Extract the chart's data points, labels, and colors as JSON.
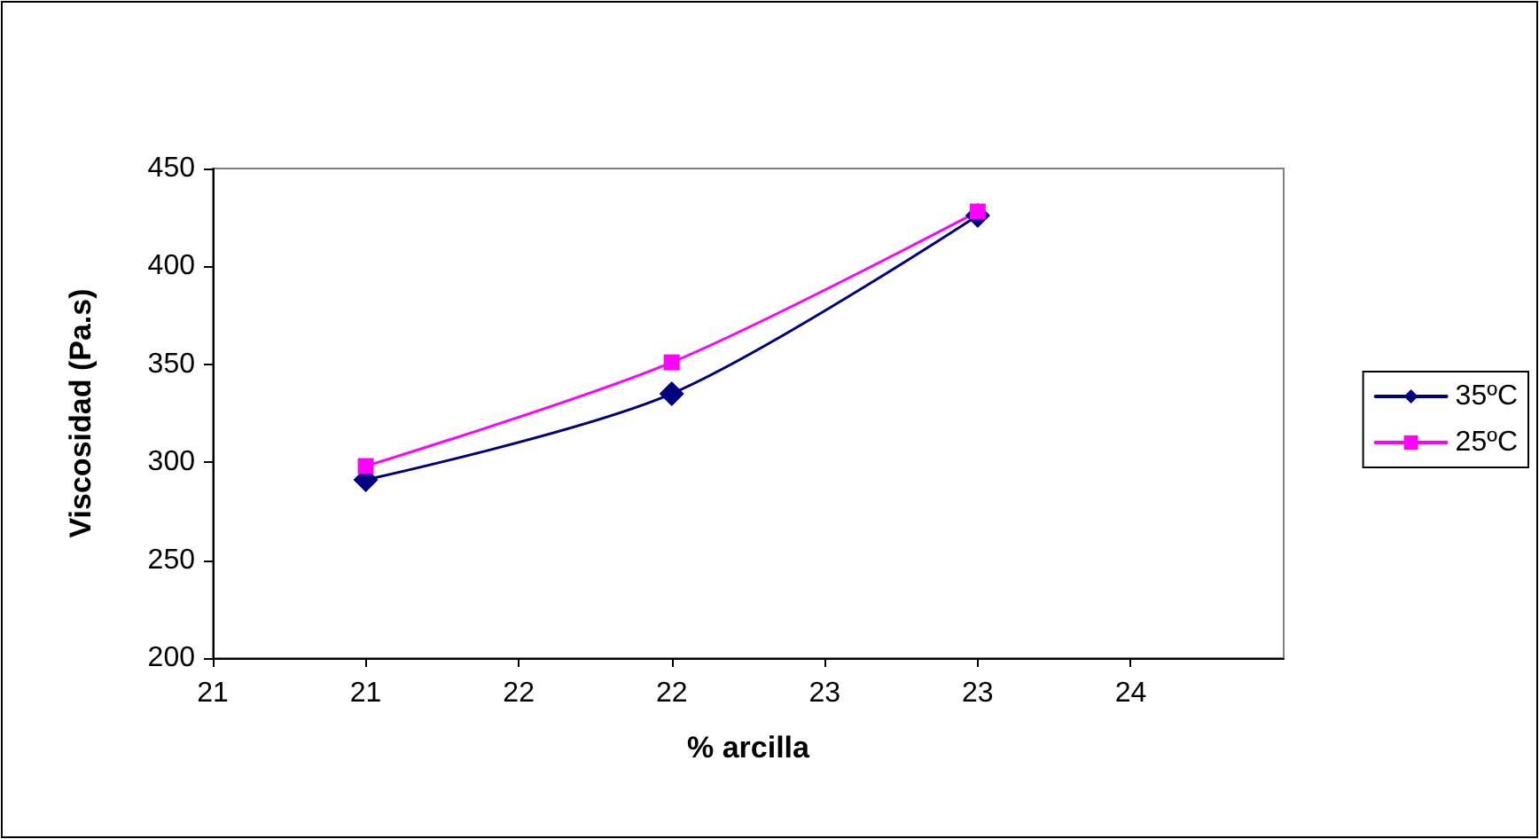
{
  "chart_data": {
    "type": "line",
    "xlabel": "% arcilla",
    "ylabel": "Viscosidad (Pa.s)",
    "x": [
      21,
      22,
      23
    ],
    "series": [
      {
        "name": "35ºC",
        "color": "#000080",
        "marker": "diamond",
        "values": [
          291,
          335,
          426
        ]
      },
      {
        "name": "25ºC",
        "color": "#ff00ff",
        "marker": "square",
        "values": [
          298,
          351,
          428
        ]
      }
    ],
    "xlim": [
      20.5,
      24
    ],
    "xticks": [
      {
        "value": 20.5,
        "label": "21"
      },
      21,
      {
        "value": 21.5,
        "label": "22"
      },
      22,
      {
        "value": 22.5,
        "label": "23"
      },
      23,
      {
        "value": 23.5,
        "label": "24"
      }
    ],
    "ylim": [
      200,
      450
    ],
    "yticks": [
      200,
      250,
      300,
      350,
      400,
      450
    ],
    "grid": false,
    "legend": "right",
    "line_style": "solid"
  }
}
